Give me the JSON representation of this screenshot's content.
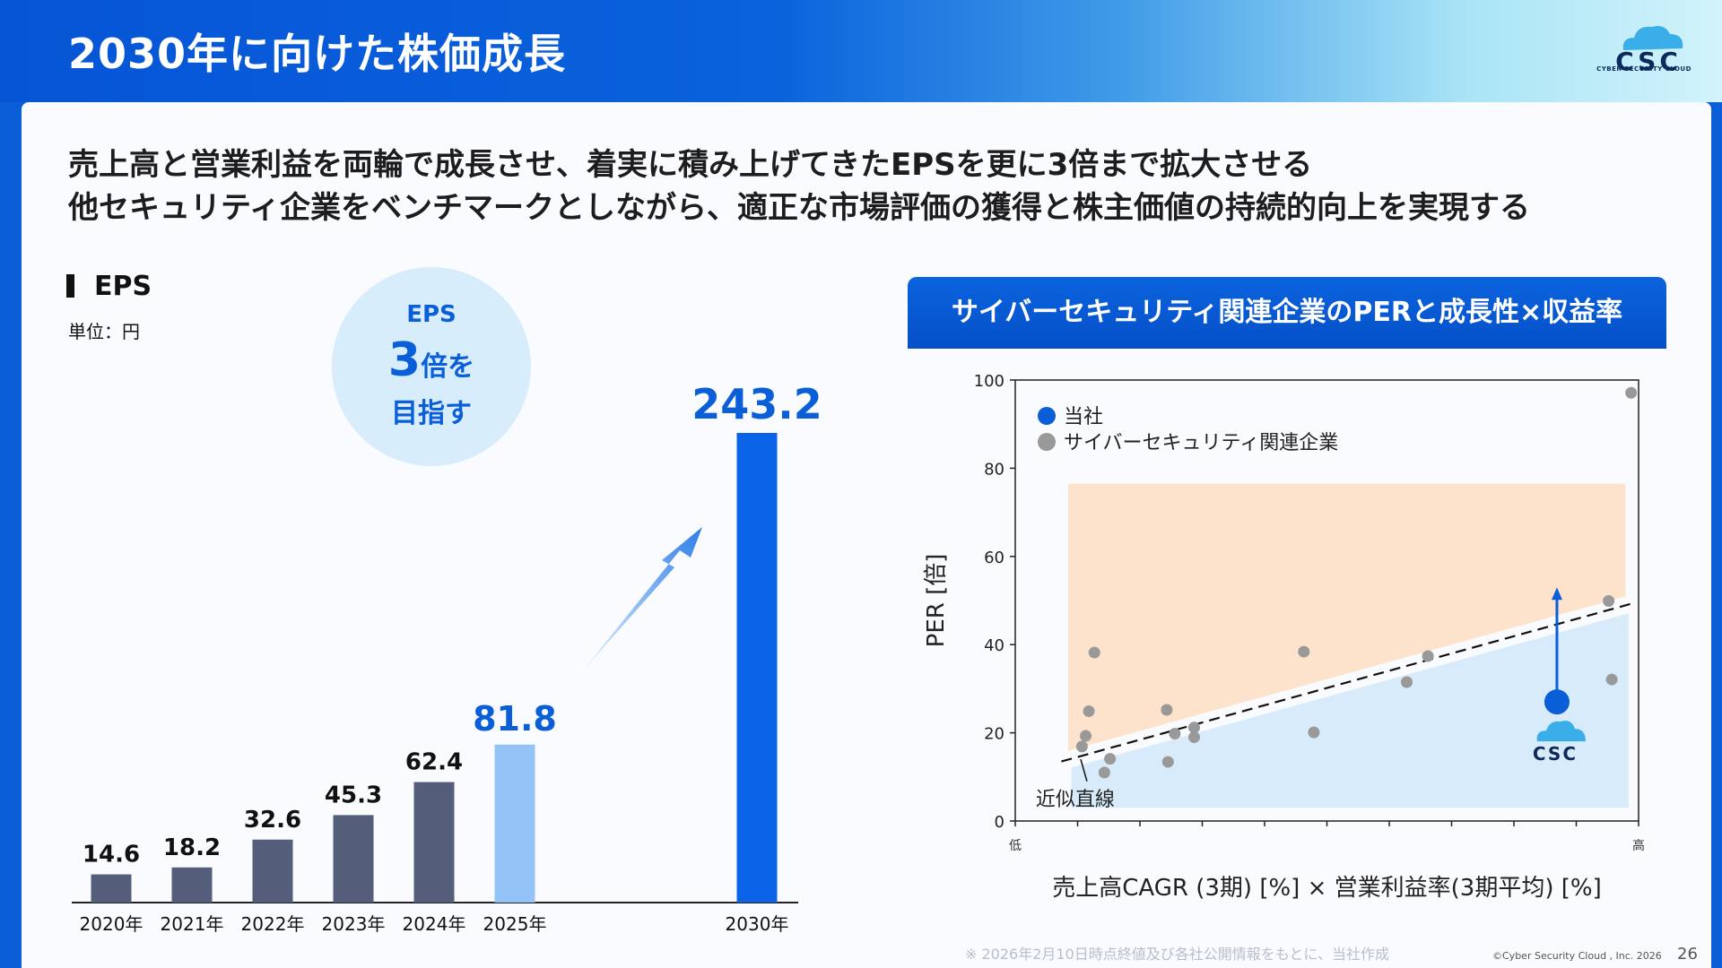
{
  "page": {
    "title": "2030年に向けた株価成長",
    "lead_line1": "売上高と営業利益を両輪で成長させ、着実に積み上げてきたEPSを更に3倍まで拡大させる",
    "lead_line2": "他セキュリティ企業をベンチマークとしながら、適正な市場評価の獲得と株主価値の持続的向上を実現する",
    "logo_text": "CSC",
    "logo_subtext": "CYBER SECURITY CLOUD",
    "footnote": "※ 2026年2月10日時点終値及び各社公開情報をもとに、当社作成",
    "copyright": "©Cyber Security Cloud , Inc. 2026",
    "page_number": "26"
  },
  "eps_section": {
    "heading": "EPS",
    "unit": "単位：円",
    "bubble_line1": "EPS",
    "bubble_num": "3",
    "bubble_suffix": "倍を",
    "bubble_line3": "目指す"
  },
  "per_section": {
    "header": "サイバーセキュリティ関連企業のPERと成長性×収益率",
    "legend_self": "当社",
    "legend_peers": "サイバーセキュリティ関連企業",
    "fit_label": "近似直線",
    "logo_text": "CSC"
  },
  "colors": {
    "brand_blue": "#0a5ed8",
    "history_bar": "#545e7a",
    "forecast_bar": "#94c3f8",
    "target_bar": "#0a62e6",
    "peer_dot": "#999999",
    "upper_zone": "#fde3cb",
    "lower_zone": "#d8ebfb"
  },
  "chart_data": [
    {
      "type": "bar",
      "title": "EPS",
      "unit": "円",
      "categories": [
        "2020年",
        "2021年",
        "2022年",
        "2023年",
        "2024年",
        "2025年",
        "2030年"
      ],
      "values": [
        14.6,
        18.2,
        32.6,
        45.3,
        62.4,
        81.8,
        243.2
      ],
      "labels": [
        "14.6",
        "18.2",
        "32.6",
        "45.3",
        "62.4",
        "81.8",
        "243.2"
      ],
      "kinds": [
        "actual",
        "actual",
        "actual",
        "actual",
        "actual",
        "forecast",
        "target"
      ]
    },
    {
      "type": "scatter",
      "title": "サイバーセキュリティ関連企業のPERと成長性×収益率",
      "xlabel": "売上高CAGR (3期) [%] × 営業利益率(3期平均) [%]",
      "ylabel": "PER [倍]",
      "x_low_label": "低",
      "x_high_label": "高",
      "xlim": [
        0,
        100
      ],
      "ylim": [
        0,
        100
      ],
      "yticks": [
        0,
        20,
        40,
        60,
        80,
        100
      ],
      "xticks": [
        0,
        10,
        20,
        30,
        40,
        50,
        60,
        70,
        80,
        90,
        100
      ],
      "series": [
        {
          "name": "サイバーセキュリティ関連企業",
          "points": [
            [
              10.7,
              16.9
            ],
            [
              11.3,
              19.3
            ],
            [
              11.8,
              24.9
            ],
            [
              12.7,
              38.2
            ],
            [
              14.3,
              11.0
            ],
            [
              15.2,
              14.1
            ],
            [
              24.3,
              25.2
            ],
            [
              24.5,
              13.4
            ],
            [
              25.6,
              19.8
            ],
            [
              28.7,
              21.2
            ],
            [
              28.7,
              19.0
            ],
            [
              46.3,
              38.4
            ],
            [
              47.9,
              20.1
            ],
            [
              62.8,
              31.5
            ],
            [
              66.2,
              37.4
            ],
            [
              95.2,
              49.9
            ],
            [
              95.7,
              32.1
            ],
            [
              98.8,
              97.1
            ]
          ]
        },
        {
          "name": "当社",
          "points": [
            [
              86.9,
              27.0
            ]
          ],
          "target_per": 53
        }
      ],
      "trendline": {
        "from": [
          7.4,
          13.5
        ],
        "to": [
          98.9,
          49.3
        ]
      }
    }
  ]
}
